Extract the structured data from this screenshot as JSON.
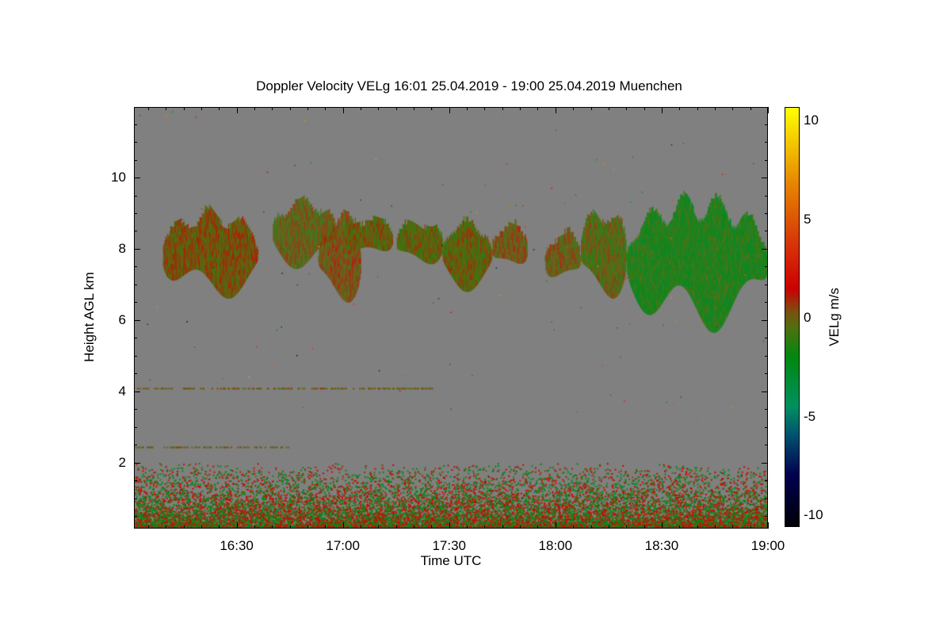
{
  "chart_data": {
    "type": "heatmap",
    "title": "Doppler Velocity VELg   16:01 25.04.2019 - 19:00 25.04.2019 Muenchen",
    "xlabel": "Time UTC",
    "ylabel": "Height AGL km",
    "xlim_minutes_after_1600": [
      1,
      180
    ],
    "ylim": [
      0.15,
      11.98
    ],
    "x_ticks": [
      {
        "label": "16:30",
        "value": 30
      },
      {
        "label": "17:00",
        "value": 60
      },
      {
        "label": "17:30",
        "value": 90
      },
      {
        "label": "18:00",
        "value": 120
      },
      {
        "label": "18:30",
        "value": 150
      },
      {
        "label": "19:00",
        "value": 180
      }
    ],
    "y_ticks": [
      {
        "label": "2",
        "value": 2
      },
      {
        "label": "4",
        "value": 4
      },
      {
        "label": "6",
        "value": 6
      },
      {
        "label": "8",
        "value": 8
      },
      {
        "label": "10",
        "value": 10
      }
    ],
    "background_color": "#808080",
    "colorbar": {
      "label": "VELg m/s",
      "range": [
        -10.6,
        10.7
      ],
      "ticks": [
        {
          "label": "10",
          "value": 10
        },
        {
          "label": "5",
          "value": 5
        },
        {
          "label": "0",
          "value": 0
        },
        {
          "label": "-5",
          "value": -5
        },
        {
          "label": "-10",
          "value": -10
        }
      ],
      "stops": [
        [
          -10.6,
          "#000008"
        ],
        [
          -8,
          "#000050"
        ],
        [
          -6,
          "#005070"
        ],
        [
          -4.5,
          "#009060"
        ],
        [
          -2,
          "#008810"
        ],
        [
          -0.5,
          "#507010"
        ],
        [
          0.3,
          "#7a5010"
        ],
        [
          1.5,
          "#cc0000"
        ],
        [
          4,
          "#d83a08"
        ],
        [
          7,
          "#e88a00"
        ],
        [
          10.7,
          "#ffff00"
        ]
      ]
    },
    "cloud_regions": [
      {
        "t": [
          9,
          36
        ],
        "h": [
          6.5,
          9.1
        ],
        "vel": 0.1
      },
      {
        "t": [
          40,
          58
        ],
        "h": [
          7.4,
          9.4
        ],
        "vel": -0.2
      },
      {
        "t": [
          53,
          65
        ],
        "h": [
          6.3,
          9.0
        ],
        "vel": 0.2
      },
      {
        "t": [
          60,
          74
        ],
        "h": [
          7.6,
          8.9
        ],
        "vel": -0.1
      },
      {
        "t": [
          75,
          88
        ],
        "h": [
          7.4,
          8.8
        ],
        "vel": -0.3
      },
      {
        "t": [
          88,
          102
        ],
        "h": [
          6.8,
          8.8
        ],
        "vel": -0.2
      },
      {
        "t": [
          102,
          112
        ],
        "h": [
          7.2,
          8.7
        ],
        "vel": 0.1
      },
      {
        "t": [
          117,
          127
        ],
        "h": [
          6.8,
          8.5
        ],
        "vel": 0.0
      },
      {
        "t": [
          127,
          140
        ],
        "h": [
          6.4,
          9.2
        ],
        "vel": -0.4
      },
      {
        "t": [
          140,
          180
        ],
        "h": [
          5.6,
          9.5
        ],
        "vel": -1.6
      }
    ],
    "boundary_layer": {
      "t": [
        1,
        180
      ],
      "h": [
        0.15,
        2.0
      ]
    },
    "thin_layers": [
      {
        "t": [
          1,
          85
        ],
        "h": 4.1
      },
      {
        "t": [
          1,
          45
        ],
        "h": 2.45
      }
    ]
  }
}
